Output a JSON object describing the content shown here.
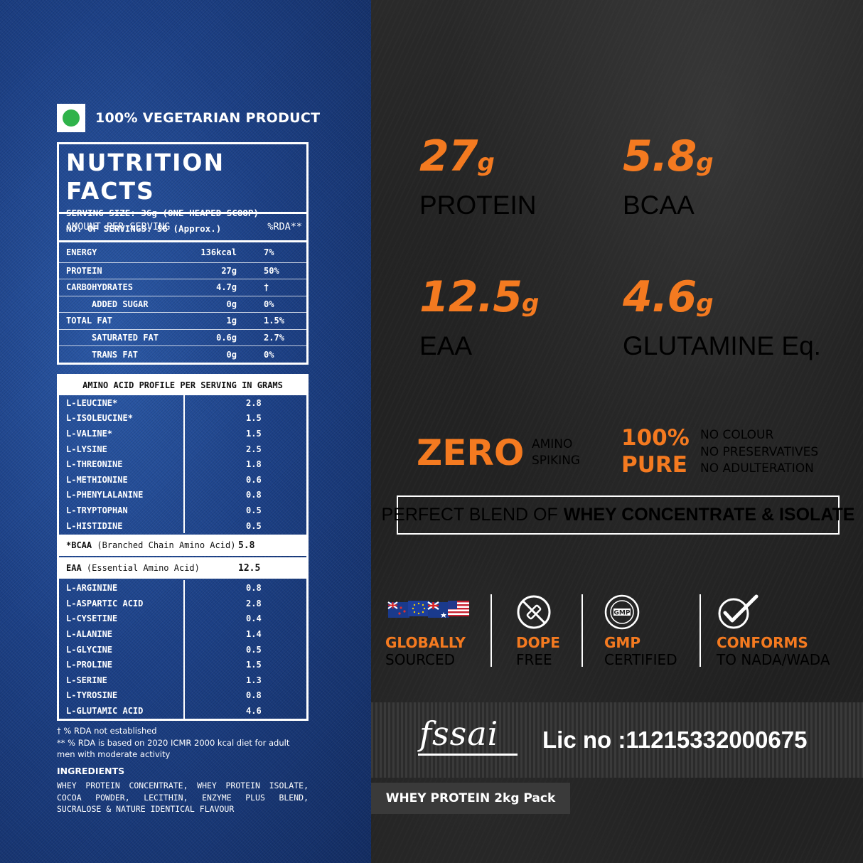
{
  "left": {
    "veg_label": "100% VEGETARIAN PRODUCT",
    "nutrition": {
      "title": "NUTRITION FACTS",
      "serving_size": "SERVING SIZE: 36g (ONE HEAPED SCOOP)",
      "servings": "NO. OF SERVINGS: 56 (Approx.)",
      "header_label": "AMOUNT PER SERVING",
      "header_rda": "%RDA**",
      "rows": [
        {
          "name": "ENERGY",
          "amount": "136kcal",
          "rda": "7%"
        },
        {
          "name": "PROTEIN",
          "amount": "27g",
          "rda": "50%"
        },
        {
          "name": "CARBOHYDRATES",
          "amount": "4.7g",
          "rda": "†"
        },
        {
          "name": "ADDED SUGAR",
          "amount": "0g",
          "rda": "0%"
        },
        {
          "name": "TOTAL FAT",
          "amount": "1g",
          "rda": "1.5%"
        },
        {
          "name": "SATURATED FAT",
          "amount": "0.6g",
          "rda": "2.7%"
        },
        {
          "name": "TRANS FAT",
          "amount": "0g",
          "rda": "0%"
        }
      ]
    },
    "amino": {
      "title": "AMINO ACID PROFILE PER SERVING IN GRAMS",
      "group1": [
        {
          "name": "L-LEUCINE*",
          "value": "2.8"
        },
        {
          "name": "L-ISOLEUCINE*",
          "value": "1.5"
        },
        {
          "name": "L-VALINE*",
          "value": "1.5"
        },
        {
          "name": "L-LYSINE",
          "value": "2.5"
        },
        {
          "name": "L-THREONINE",
          "value": "1.8"
        },
        {
          "name": "L-METHIONINE",
          "value": "0.6"
        },
        {
          "name": "L-PHENYLALANINE",
          "value": "0.8"
        },
        {
          "name": "L-TRYPTOPHAN",
          "value": "0.5"
        },
        {
          "name": "L-HISTIDINE",
          "value": "0.5"
        }
      ],
      "bcaa": {
        "bold": "*BCAA",
        "rest": "(Branched Chain Amino Acid)",
        "value": "5.8"
      },
      "eaa": {
        "bold": "EAA",
        "rest": "(Essential Amino Acid)",
        "value": "12.5"
      },
      "group2": [
        {
          "name": "L-ARGININE",
          "value": "0.8"
        },
        {
          "name": "L-ASPARTIC ACID",
          "value": "2.8"
        },
        {
          "name": "L-CYSETINE",
          "value": "0.4"
        },
        {
          "name": "L-ALANINE",
          "value": "1.4"
        },
        {
          "name": "L-GLYCINE",
          "value": "0.5"
        },
        {
          "name": "L-PROLINE",
          "value": "1.5"
        },
        {
          "name": "L-SERINE",
          "value": "1.3"
        },
        {
          "name": "L-TYROSINE",
          "value": "0.8"
        },
        {
          "name": "L-GLUTAMIC ACID",
          "value": "4.6"
        }
      ]
    },
    "notes": {
      "note1": "† % RDA not established",
      "note2": "** % RDA is based on 2020 ICMR 2000 kcal diet for adult men with moderate activity"
    },
    "ingredients": {
      "title": "INGREDIENTS",
      "text": "WHEY PROTEIN CONCENTRATE, WHEY PROTEIN ISOLATE, COCOA POWDER, LECITHIN, ENZYME PLUS BLEND, SUCRALOSE & NATURE IDENTICAL FLAVOUR"
    }
  },
  "right": {
    "stats": [
      {
        "value": "27",
        "unit": "g",
        "label": "PROTEIN"
      },
      {
        "value": "5.8",
        "unit": "g",
        "label": "BCAA"
      },
      {
        "value": "12.5",
        "unit": "g",
        "label": "EAA"
      },
      {
        "value": "4.6",
        "unit": "g",
        "label": "GLUTAMINE Eq."
      }
    ],
    "zero": {
      "big": "ZERO",
      "line1": "AMINO",
      "line2": "SPIKING"
    },
    "pure": {
      "line1": "100%",
      "line2": "PURE",
      "items": [
        "NO COLOUR",
        "NO PRESERVATIVES",
        "NO ADULTERATION"
      ]
    },
    "blend": {
      "normal": "PERFECT BLEND OF",
      "bold": "WHEY CONCENTRATE & ISOLATE"
    },
    "badges": [
      {
        "icon": "flags-icon",
        "t1": "GLOBALLY",
        "t2": "SOURCED"
      },
      {
        "icon": "no-dope-icon",
        "t1": "DOPE",
        "t2": "FREE"
      },
      {
        "icon": "gmp-seal-icon",
        "t1": "GMP",
        "t2": "CERTIFIED"
      },
      {
        "icon": "checkmark-icon",
        "t1": "CONFORMS",
        "t2": "TO NADA/WADA"
      }
    ],
    "gmp_seal_text": "GMP",
    "fssai_logo": "fssai",
    "license": "Lic no :11215332000675",
    "pack": "WHEY PROTEIN 2kg Pack"
  },
  "colors": {
    "accent": "#f47a20",
    "veg_green": "#2fb34a",
    "denim": "#1d4187",
    "dark": "#1c1c1c"
  }
}
